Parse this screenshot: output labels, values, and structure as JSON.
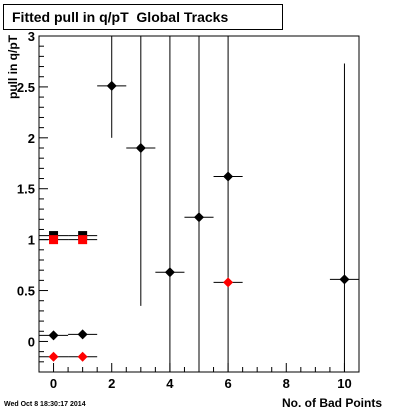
{
  "title": "Fitted pull in q/pT  Global Tracks",
  "timestamp": "Wed Oct  8 18:30:17 2014",
  "chart_data": {
    "type": "scatter",
    "title": "Fitted pull in q/pT  Global Tracks",
    "xlabel": "No. of Bad Points",
    "ylabel": "pull in q/pT",
    "xlim": [
      -0.5,
      10.5
    ],
    "ylim": [
      -0.3,
      3.0
    ],
    "xticks": [
      0,
      2,
      4,
      6,
      8,
      10
    ],
    "yticks": [
      0,
      0.5,
      1,
      1.5,
      2,
      2.5,
      3
    ],
    "ytick_labels": [
      "0",
      "0.5",
      "1",
      "1.5",
      "2",
      "2.5",
      "3"
    ],
    "grid": false,
    "series": [
      {
        "marker": "diamond",
        "color": "#000000",
        "points": [
          {
            "x": 0,
            "y": 0.06,
            "ylow": 0.06,
            "yhigh": 0.06
          },
          {
            "x": 1,
            "y": 0.07,
            "ylow": 0.07,
            "yhigh": 0.07
          },
          {
            "x": 2,
            "y": 2.51,
            "ylow": 2.0,
            "yhigh": 3.0
          },
          {
            "x": 3,
            "y": 1.9,
            "ylow": 0.35,
            "yhigh": 3.0
          },
          {
            "x": 4,
            "y": 0.68,
            "ylow": -0.3,
            "yhigh": 3.0
          },
          {
            "x": 5,
            "y": 1.22,
            "ylow": -0.3,
            "yhigh": 3.0
          },
          {
            "x": 6,
            "y": 1.62,
            "ylow": -0.3,
            "yhigh": 3.0
          },
          {
            "x": 10,
            "y": 0.61,
            "ylow": -0.3,
            "yhigh": 2.73
          }
        ]
      },
      {
        "marker": "diamond",
        "color": "#ff0000",
        "points": [
          {
            "x": 0,
            "y": -0.15
          },
          {
            "x": 1,
            "y": -0.15
          },
          {
            "x": 6,
            "y": 0.58
          }
        ]
      },
      {
        "marker": "square",
        "color": "#000000",
        "points": [
          {
            "x": 0,
            "y": 1.04
          },
          {
            "x": 1,
            "y": 1.04
          }
        ]
      },
      {
        "marker": "square",
        "color": "#ff0000",
        "points": [
          {
            "x": 0,
            "y": 1.0
          },
          {
            "x": 1,
            "y": 1.0
          }
        ]
      }
    ]
  }
}
